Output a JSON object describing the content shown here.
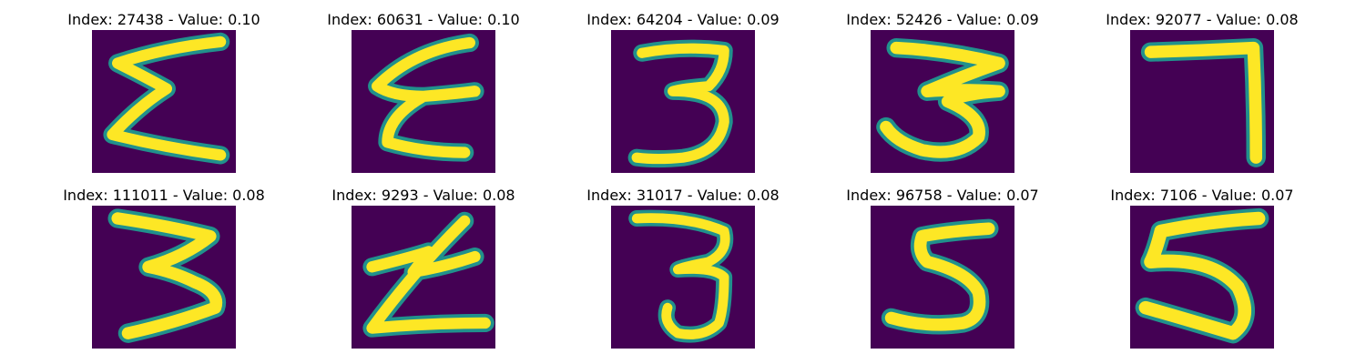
{
  "colors": {
    "background": "#440154",
    "stroke_core": "#fde725",
    "stroke_edge": "#21918c",
    "stroke_mid": "#5ec962"
  },
  "panels": [
    {
      "title": "Index: 27438 - Value: 0.10",
      "index": 27438,
      "value": 0.1,
      "glyph": "Σ-like scribble"
    },
    {
      "title": "Index: 60631 - Value: 0.10",
      "index": 60631,
      "value": 0.1,
      "glyph": "ε-like scribble"
    },
    {
      "title": "Index: 64204 - Value: 0.09",
      "index": 64204,
      "value": 0.09,
      "glyph": "3"
    },
    {
      "title": "Index: 52426 - Value: 0.09",
      "index": 52426,
      "value": 0.09,
      "glyph": "3"
    },
    {
      "title": "Index: 92077 - Value: 0.08",
      "index": 92077,
      "value": 0.08,
      "glyph": "7"
    },
    {
      "title": "Index: 111011 - Value: 0.08",
      "index": 111011,
      "value": 0.08,
      "glyph": "3"
    },
    {
      "title": "Index: 9293 - Value: 0.08",
      "index": 9293,
      "value": 0.08,
      "glyph": "Z-like scribble"
    },
    {
      "title": "Index: 31017 - Value: 0.08",
      "index": 31017,
      "value": 0.08,
      "glyph": "3"
    },
    {
      "title": "Index: 96758 - Value: 0.07",
      "index": 96758,
      "value": 0.07,
      "glyph": "5"
    },
    {
      "title": "Index: 7106 - Value: 0.07",
      "index": 7106,
      "value": 0.07,
      "glyph": "5"
    }
  ]
}
